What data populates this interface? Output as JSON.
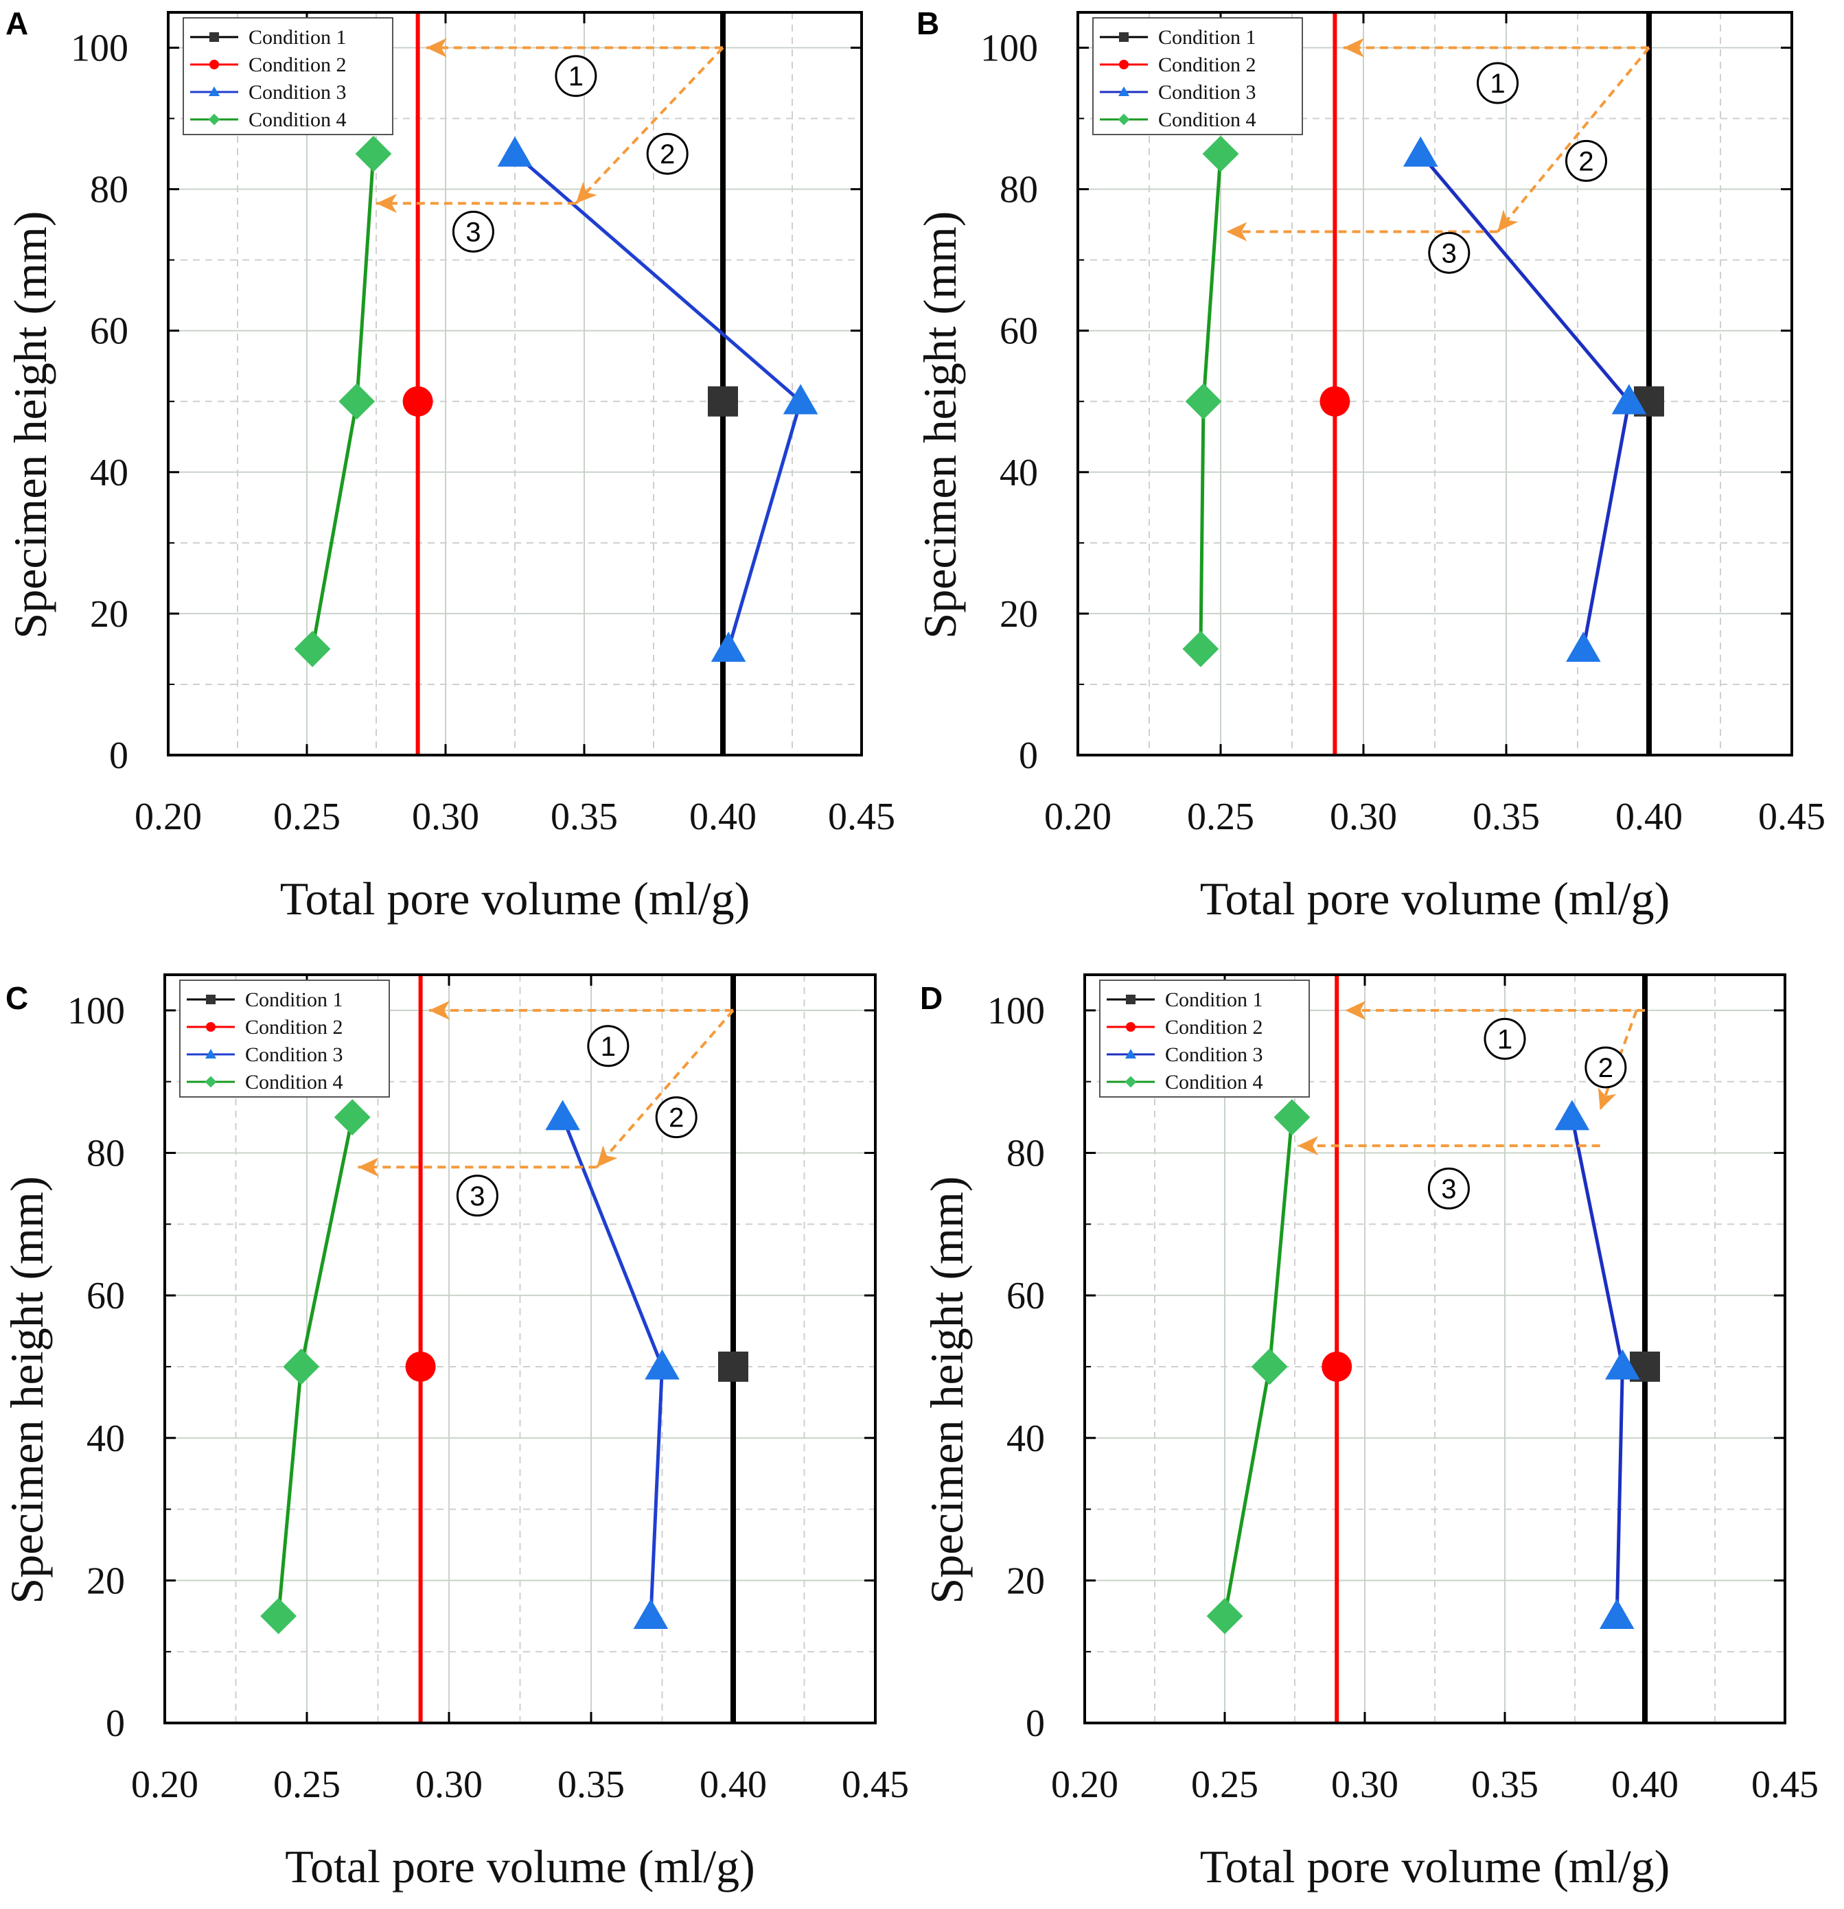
{
  "figure": {
    "panels": [
      "A",
      "B",
      "C",
      "D"
    ]
  },
  "chart_data": [
    {
      "panel": "A",
      "type": "line",
      "xlabel": "Total pore volume (ml/g)",
      "ylabel": "Specimen height (mm)",
      "xlim": [
        0.2,
        0.45
      ],
      "ylim": [
        0,
        105
      ],
      "xticks": [
        "0.20",
        "0.25",
        "0.30",
        "0.35",
        "0.40",
        "0.45"
      ],
      "yticks": [
        "0",
        "20",
        "40",
        "60",
        "80",
        "100"
      ],
      "legend_position": "top-left",
      "series": [
        {
          "name": "Condition 1",
          "color": "#000000",
          "marker": "square",
          "x": [
            0.4
          ],
          "y": [
            50
          ],
          "vline": 0.4
        },
        {
          "name": "Condition 2",
          "color": "#ff0000",
          "marker": "circle",
          "x": [
            0.29
          ],
          "y": [
            50
          ],
          "vline": 0.29
        },
        {
          "name": "Condition 3",
          "color": "#1f77e8",
          "line_color": "#1f3fd0",
          "marker": "triangle",
          "x": [
            0.402,
            0.428,
            0.325
          ],
          "y": [
            15,
            50,
            85
          ]
        },
        {
          "name": "Condition 4",
          "color": "#3cc060",
          "line_color": "#1a9a20",
          "marker": "diamond",
          "x": [
            0.252,
            0.268,
            0.274
          ],
          "y": [
            15,
            50,
            85
          ]
        }
      ],
      "annotations": [
        {
          "label": "①",
          "from": [
            0.4,
            100
          ],
          "to": [
            0.293,
            100
          ],
          "label_at": [
            0.347,
            96
          ]
        },
        {
          "label": "②",
          "from": [
            0.4,
            100
          ],
          "to": [
            0.347,
            78
          ],
          "label_at": [
            0.38,
            85
          ]
        },
        {
          "label": "③",
          "from": [
            0.347,
            78
          ],
          "to": [
            0.275,
            78
          ],
          "label_at": [
            0.31,
            74
          ]
        }
      ]
    },
    {
      "panel": "B",
      "type": "line",
      "xlabel": "Total pore volume (ml/g)",
      "ylabel": "Specimen height (mm)",
      "xlim": [
        0.2,
        0.45
      ],
      "ylim": [
        0,
        105
      ],
      "xticks": [
        "0.20",
        "0.25",
        "0.30",
        "0.35",
        "0.40",
        "0.45"
      ],
      "yticks": [
        "0",
        "20",
        "40",
        "60",
        "80",
        "100"
      ],
      "legend_position": "top-left",
      "series": [
        {
          "name": "Condition 1",
          "color": "#000000",
          "marker": "square",
          "x": [
            0.4
          ],
          "y": [
            50
          ],
          "vline": 0.4
        },
        {
          "name": "Condition 2",
          "color": "#ff0000",
          "marker": "circle",
          "x": [
            0.29
          ],
          "y": [
            50
          ],
          "vline": 0.29
        },
        {
          "name": "Condition 3",
          "color": "#1f77e8",
          "line_color": "#1b2fc0",
          "marker": "triangle",
          "x": [
            0.377,
            0.393,
            0.32
          ],
          "y": [
            15,
            50,
            85
          ]
        },
        {
          "name": "Condition 4",
          "color": "#3cc060",
          "line_color": "#1a9a20",
          "marker": "diamond",
          "x": [
            0.243,
            0.244,
            0.25
          ],
          "y": [
            15,
            50,
            85
          ]
        }
      ],
      "annotations": [
        {
          "label": "①",
          "from": [
            0.4,
            100
          ],
          "to": [
            0.293,
            100
          ],
          "label_at": [
            0.347,
            95
          ]
        },
        {
          "label": "②",
          "from": [
            0.4,
            100
          ],
          "to": [
            0.347,
            74
          ],
          "label_at": [
            0.378,
            84
          ]
        },
        {
          "label": "③",
          "from": [
            0.347,
            74
          ],
          "to": [
            0.252,
            74
          ],
          "label_at": [
            0.33,
            71
          ]
        }
      ]
    },
    {
      "panel": "C",
      "type": "line",
      "xlabel": "Total pore volume (ml/g)",
      "ylabel": "Specimen height (mm)",
      "xlim": [
        0.2,
        0.45
      ],
      "ylim": [
        0,
        105
      ],
      "xticks": [
        "0.20",
        "0.25",
        "0.30",
        "0.35",
        "0.40",
        "0.45"
      ],
      "yticks": [
        "0",
        "20",
        "40",
        "60",
        "80",
        "100"
      ],
      "legend_position": "top-left",
      "series": [
        {
          "name": "Condition 1",
          "color": "#000000",
          "marker": "square",
          "x": [
            0.4
          ],
          "y": [
            50
          ],
          "vline": 0.4
        },
        {
          "name": "Condition 2",
          "color": "#ff0000",
          "marker": "circle",
          "x": [
            0.29
          ],
          "y": [
            50
          ],
          "vline": 0.29
        },
        {
          "name": "Condition 3",
          "color": "#1f77e8",
          "line_color": "#1f3fd0",
          "marker": "triangle",
          "x": [
            0.371,
            0.375,
            0.34
          ],
          "y": [
            15,
            50,
            85
          ]
        },
        {
          "name": "Condition 4",
          "color": "#3cc060",
          "line_color": "#1a9a20",
          "marker": "diamond",
          "x": [
            0.24,
            0.248,
            0.266
          ],
          "y": [
            15,
            50,
            85
          ]
        }
      ],
      "annotations": [
        {
          "label": "①",
          "from": [
            0.4,
            100
          ],
          "to": [
            0.293,
            100
          ],
          "label_at": [
            0.356,
            95
          ]
        },
        {
          "label": "②",
          "from": [
            0.4,
            100
          ],
          "to": [
            0.352,
            78
          ],
          "label_at": [
            0.38,
            85
          ]
        },
        {
          "label": "③",
          "from": [
            0.352,
            78
          ],
          "to": [
            0.268,
            78
          ],
          "label_at": [
            0.31,
            74
          ]
        }
      ]
    },
    {
      "panel": "D",
      "type": "line",
      "xlabel": "Total pore volume (ml/g)",
      "ylabel": "Specimen height (mm)",
      "xlim": [
        0.2,
        0.45
      ],
      "ylim": [
        0,
        105
      ],
      "xticks": [
        "0.20",
        "0.25",
        "0.30",
        "0.35",
        "0.40",
        "0.45"
      ],
      "yticks": [
        "0",
        "20",
        "40",
        "60",
        "80",
        "100"
      ],
      "legend_position": "top-left",
      "series": [
        {
          "name": "Condition 1",
          "color": "#000000",
          "marker": "square",
          "x": [
            0.4
          ],
          "y": [
            50
          ],
          "vline": 0.4
        },
        {
          "name": "Condition 2",
          "color": "#ff0000",
          "marker": "circle",
          "x": [
            0.29
          ],
          "y": [
            50
          ],
          "vline": 0.29
        },
        {
          "name": "Condition 3",
          "color": "#1f77e8",
          "line_color": "#1b2fc0",
          "marker": "triangle",
          "x": [
            0.39,
            0.392,
            0.374
          ],
          "y": [
            15,
            50,
            85
          ]
        },
        {
          "name": "Condition 4",
          "color": "#3cc060",
          "line_color": "#1a9a20",
          "marker": "diamond",
          "x": [
            0.25,
            0.266,
            0.274
          ],
          "y": [
            15,
            50,
            85
          ]
        }
      ],
      "annotations": [
        {
          "label": "①",
          "from": [
            0.4,
            100
          ],
          "to": [
            0.293,
            100
          ],
          "label_at": [
            0.35,
            96
          ]
        },
        {
          "label": "②",
          "from": [
            0.397,
            100
          ],
          "to": [
            0.384,
            86
          ],
          "label_at": [
            0.386,
            92
          ]
        },
        {
          "label": "③",
          "from": [
            0.384,
            81
          ],
          "to": [
            0.276,
            81
          ],
          "label_at": [
            0.33,
            75
          ]
        }
      ]
    }
  ]
}
